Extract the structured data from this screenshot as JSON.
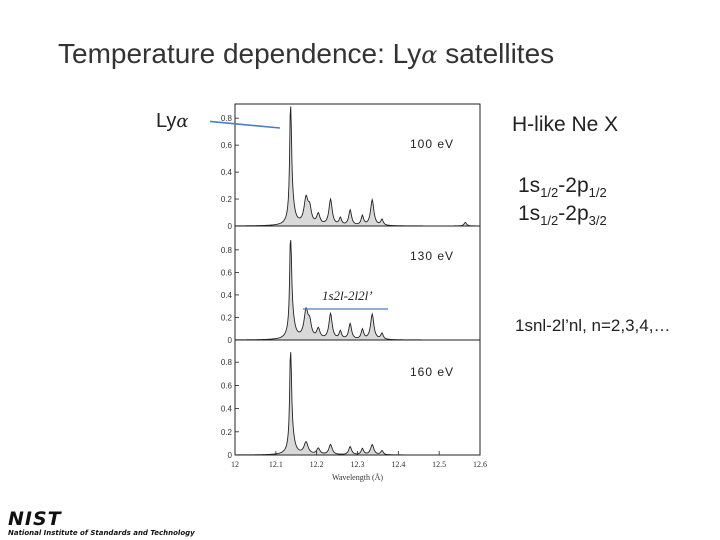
{
  "slide": {
    "title_text": "Temperature dependence: Ly",
    "title_greek": "α",
    "title_suffix": " satellites"
  },
  "labels": {
    "lya_text": "Ly",
    "lya_greek": "α",
    "hlike": "H-like Ne X",
    "transition1": {
      "a": "1s",
      "a_sub": "1/2",
      "b": "-2p",
      "b_sub": "1/2"
    },
    "transition2": {
      "a": "1s",
      "a_sub": "1/2",
      "b": "-2p",
      "b_sub": "3/2"
    },
    "satellite_series": "1snl-2l’nl, n=2,3,4,…",
    "satellite_inset": "1s2l-2l2l’"
  },
  "panels": [
    {
      "temperature": "100 eV",
      "yticks": [
        "0",
        "0.2",
        "0.4",
        "0.6",
        "0.8"
      ]
    },
    {
      "temperature": "130 eV",
      "yticks": [
        "0",
        "0.2",
        "0.4",
        "0.6",
        "0.8"
      ]
    },
    {
      "temperature": "160 eV",
      "yticks": [
        "0",
        "0.2",
        "0.4",
        "0.6",
        "0.8"
      ]
    }
  ],
  "x_axis": {
    "label": "Wavelength (Å)",
    "ticks": [
      "12",
      "12.1",
      "12.2",
      "12.3",
      "12.4",
      "12.5",
      "12.6"
    ]
  },
  "logo": {
    "text": "NIST",
    "subtitle": "National Institute of Standards and Technology"
  },
  "colors": {
    "annotation_line": "#4a7fc1",
    "fill": "#d9d9d9",
    "curve": "#222222"
  }
}
